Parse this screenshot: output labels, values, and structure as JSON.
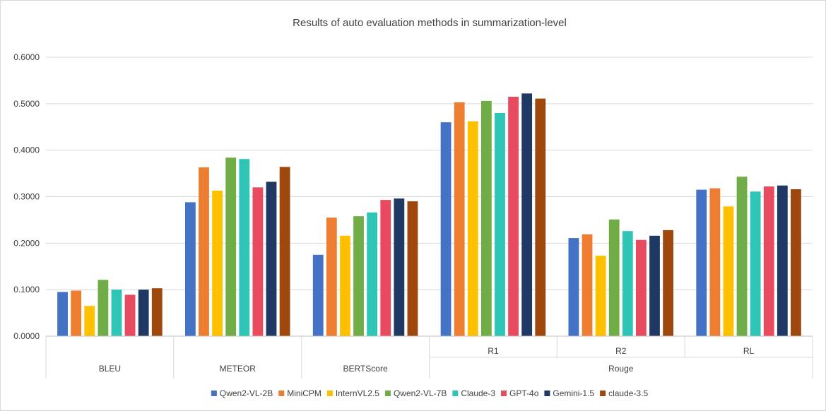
{
  "chart_data": {
    "type": "bar",
    "title": "Results of auto evaluation methods in summarization-level",
    "xlabel": "",
    "ylabel": "",
    "ylim": [
      0,
      0.6
    ],
    "yticks": [
      "0.0000",
      "0.1000",
      "0.2000",
      "0.3000",
      "0.4000",
      "0.5000",
      "0.6000"
    ],
    "grid": true,
    "legend_position": "bottom",
    "categories": [
      "BLEU",
      "METEOR",
      "BERTScore",
      "R1",
      "R2",
      "RL"
    ],
    "category_groups": [
      {
        "label": "Rouge",
        "members": [
          "R1",
          "R2",
          "RL"
        ]
      }
    ],
    "series": [
      {
        "name": "Qwen2-VL-2B",
        "color": "#4472c4",
        "values": [
          0.095,
          0.288,
          0.175,
          0.46,
          0.211,
          0.315
        ]
      },
      {
        "name": "MiniCPM",
        "color": "#ed7d31",
        "values": [
          0.098,
          0.363,
          0.255,
          0.503,
          0.219,
          0.318
        ]
      },
      {
        "name": "InternVL2.5",
        "color": "#ffc000",
        "values": [
          0.065,
          0.313,
          0.216,
          0.462,
          0.173,
          0.279
        ]
      },
      {
        "name": "Qwen2-VL-7B",
        "color": "#70ad47",
        "values": [
          0.121,
          0.384,
          0.258,
          0.506,
          0.251,
          0.343
        ]
      },
      {
        "name": "Claude-3",
        "color": "#2ec4b6",
        "values": [
          0.1,
          0.381,
          0.266,
          0.48,
          0.226,
          0.311
        ]
      },
      {
        "name": "GPT-4o",
        "color": "#e84a5f",
        "values": [
          0.089,
          0.32,
          0.293,
          0.515,
          0.207,
          0.322
        ]
      },
      {
        "name": "Gemini-1.5",
        "color": "#203864",
        "values": [
          0.1,
          0.332,
          0.296,
          0.522,
          0.216,
          0.324
        ]
      },
      {
        "name": "claude-3.5",
        "color": "#9e480e",
        "values": [
          0.103,
          0.364,
          0.29,
          0.511,
          0.228,
          0.316
        ]
      }
    ]
  }
}
